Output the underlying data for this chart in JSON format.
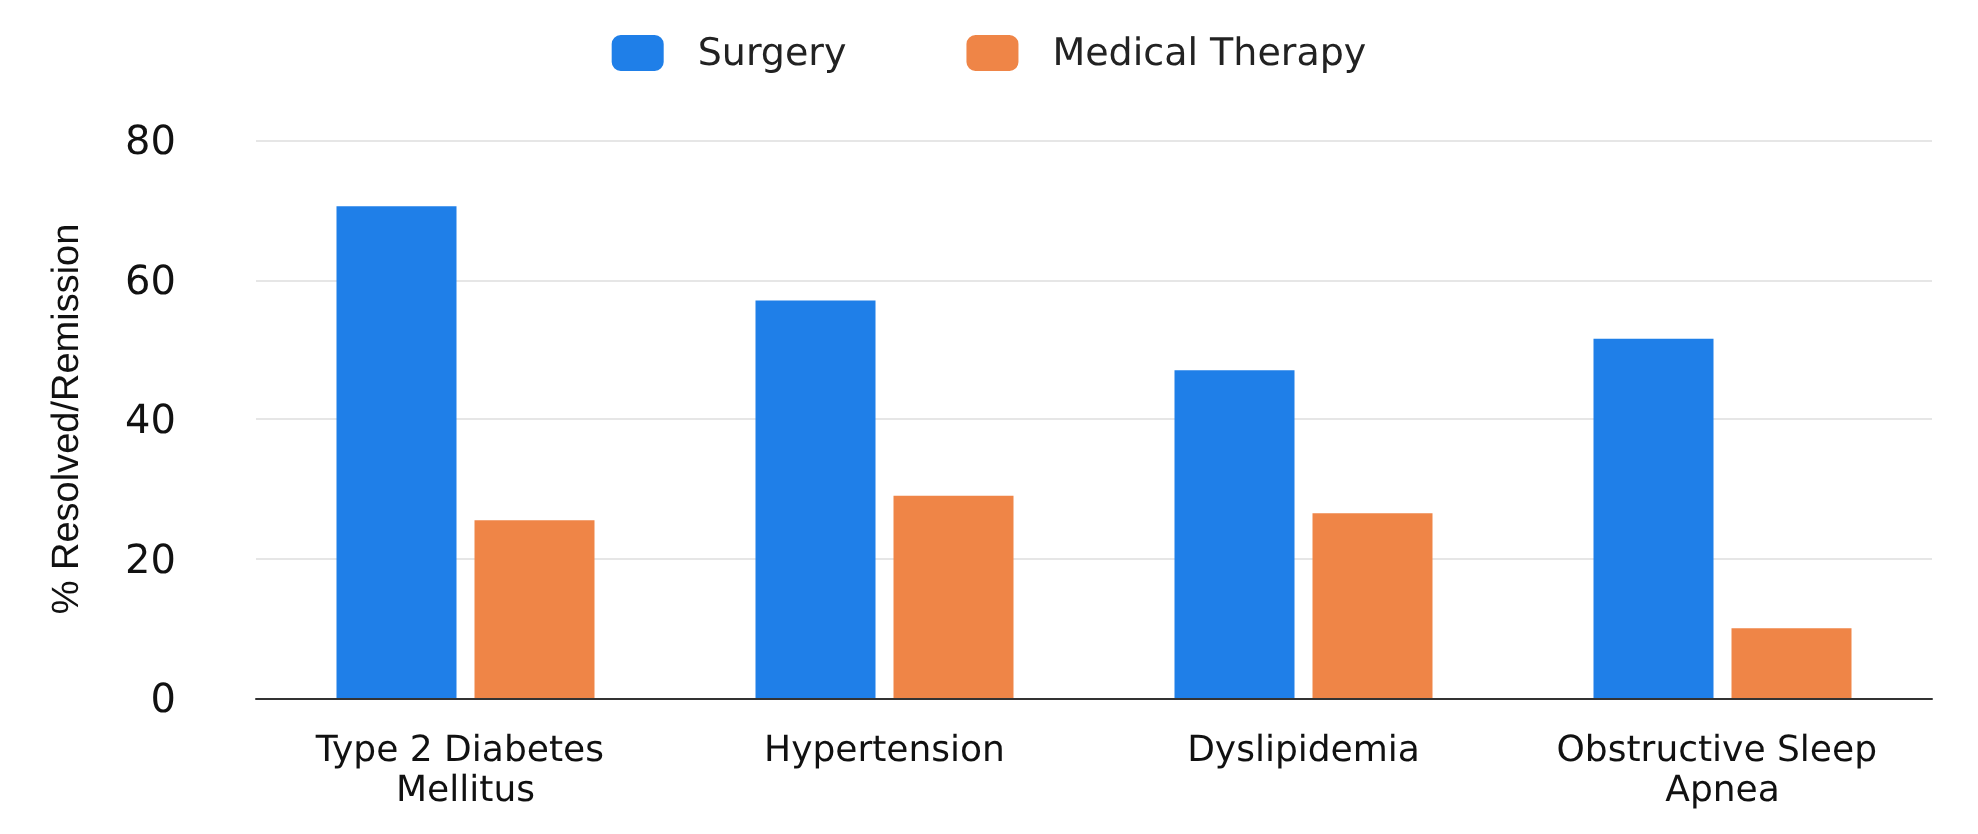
{
  "chart_data": {
    "type": "bar",
    "ylabel": "% Resolved/Remission",
    "categories": [
      "Type 2 Diabetes Mellitus",
      "Hypertension",
      "Dyslipidemia",
      "Obstructive Sleep Apnea"
    ],
    "series": [
      {
        "name": "Surgery",
        "color": "#1f7fe8",
        "values": [
          70.5,
          57,
          47,
          51.5
        ]
      },
      {
        "name": "Medical Therapy",
        "color": "#ef8547",
        "values": [
          25.5,
          29,
          26.5,
          10
        ]
      }
    ],
    "ylim": [
      0,
      80
    ],
    "yticks": [
      0,
      20,
      40,
      60,
      80
    ],
    "grid": "y",
    "legend": "top"
  }
}
